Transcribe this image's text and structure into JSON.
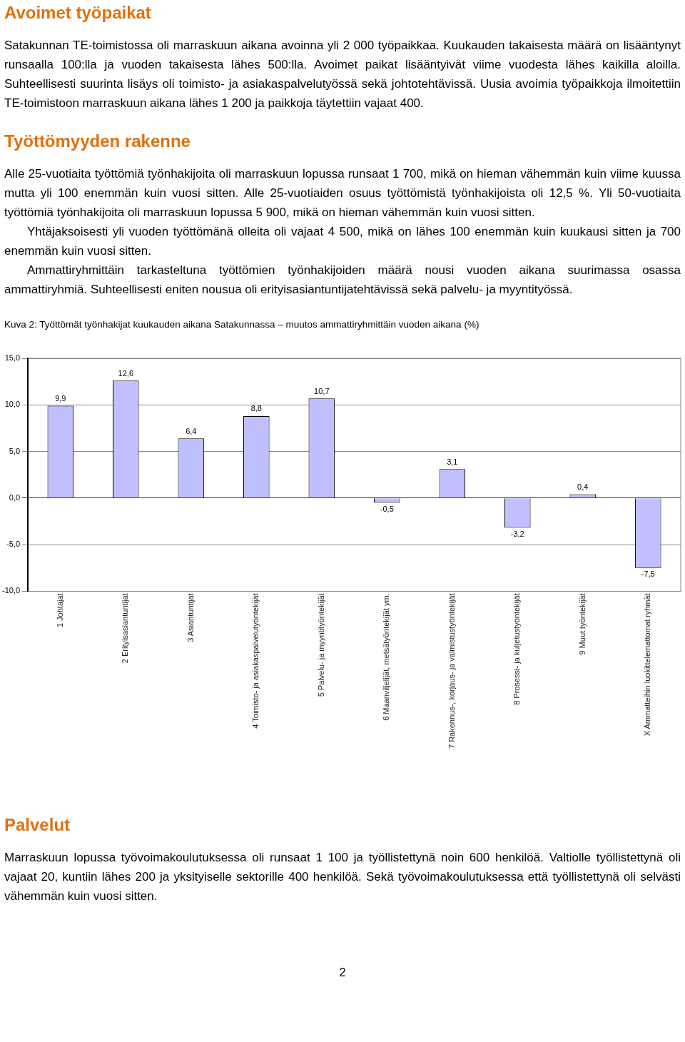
{
  "chart_data": {
    "type": "bar",
    "title": "Kuva 2: Työttömät työnhakijat kuukauden aikana Satakunnassa – muutos ammattiryhmittäin vuoden aikana (%)",
    "annotations": [
      "Avoimet työpaikat",
      "Satakunnan TE-toimistossa oli marraskuun aikana avoinna yli 2 000 työpaikkaa. Kuukauden takaisesta määrä on lisääntynyt runsaalla 100:lla ja vuoden takaisesta lähes 500:lla. Avoimet paikat lisääntyivät viime vuodesta lähes kaikilla aloilla. Suhteellisesti suurinta lisäys oli toimisto- ja asiakaspalvelutyössä sekä johtotehtävissä. Uusia avoimia työpaikkoja ilmoitettiin TE-toimistoon marraskuun aikana lähes 1 200 ja paikkoja täytettiin vajaat 400.",
      "Työttömyyden rakenne",
      "Alle 25-vuotiaita työttömiä työnhakijoita oli marraskuun lopussa runsaat 1 700, mikä on hieman vähemmän kuin viime kuussa mutta yli 100 enemmän kuin vuosi sitten. Alle 25-vuotiaiden osuus työttömistä työnhakijoista oli 12,5 %. Yli 50-vuotiaita työttömiä työnhakijoita oli marraskuun lopussa 5 900, mikä on hieman vähemmän kuin vuosi sitten.",
      "Yhtäjaksoisesti yli vuoden työttömänä olleita oli vajaat 4 500, mikä on lähes 100 enemmän kuin kuukausi sitten ja 700 enemmän kuin vuosi sitten.",
      "Ammattiryhmittäin tarkasteltuna työttömien työnhakijoiden määrä nousi vuoden aikana suurimassa osassa ammattiryhmiä. Suhteellisesti eniten nousua oli erityisasiantuntijatehtävissä sekä palvelu- ja myyntityössä.",
      "Palvelut",
      "Marraskuun lopussa työvoimakoulutuksessa oli runsaat 1 100 ja työllistettynä noin 600 henkilöä. Valtiolle työllistettynä oli vajaat 20, kuntiin lähes 200 ja yksityiselle sektorille 400 henkilöä. Sekä työvoimakoulutuksessa että työllistettynä oli selvästi vähemmän kuin vuosi sitten.",
      "2"
    ],
    "categories": [
      "1 Johtajat",
      "2 Erityisasiantuntijat",
      "3 Asiantuntijat",
      "4 Toimisto- ja asiakaspalvelutyöntekijät",
      "5 Palvelu- ja myyntityöntekijät",
      "6 Maanviljelijät, metsätyöntekijät ym.",
      "7 Rakennus-, korjaus- ja valmistustyöntekijät",
      "8 Prosessi- ja kuljetustyöntekijät",
      "9 Muut työntekijät",
      "X Ammatteihin luokittelemattomat ryhmät"
    ],
    "values": [
      9.9,
      12.6,
      6.4,
      8.8,
      10.7,
      -0.5,
      3.1,
      -3.2,
      0.4,
      -7.5
    ],
    "value_labels": [
      "9,9",
      "12,6",
      "6,4",
      "8,8",
      "10,7",
      "-0,5",
      "3,1",
      "-3,2",
      "0,4",
      "-7,5"
    ],
    "color": "#c0c0ff",
    "ylim": [
      -10,
      15
    ],
    "yticks": [
      {
        "value": -10,
        "label": "-10,0"
      },
      {
        "value": -5,
        "label": "-5,0"
      },
      {
        "value": 0,
        "label": "0,0"
      },
      {
        "value": 5,
        "label": "5,0"
      },
      {
        "value": 10,
        "label": "10,0"
      },
      {
        "value": 15,
        "label": "15,0"
      }
    ],
    "grid": "y",
    "legend": false
  }
}
